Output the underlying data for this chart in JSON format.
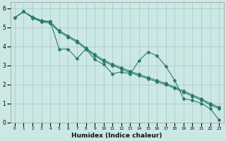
{
  "xlabel": "Humidex (Indice chaleur)",
  "background_color": "#cce8e4",
  "grid_color": "#aaccca",
  "line_color": "#2a7a6e",
  "xlim": [
    -0.5,
    23.5
  ],
  "ylim": [
    0,
    6.3
  ],
  "xticks": [
    0,
    1,
    2,
    3,
    4,
    5,
    6,
    7,
    8,
    9,
    10,
    11,
    12,
    13,
    14,
    15,
    16,
    17,
    18,
    19,
    20,
    21,
    22,
    23
  ],
  "yticks": [
    0,
    1,
    2,
    3,
    4,
    5,
    6
  ],
  "series1_x": [
    0,
    1,
    2,
    3,
    4,
    5,
    6,
    7,
    8,
    9,
    10,
    11,
    12,
    13,
    14,
    15,
    16,
    17,
    18,
    19,
    20,
    21,
    22,
    23
  ],
  "series1_y": [
    5.5,
    5.82,
    5.55,
    5.35,
    5.3,
    3.85,
    3.85,
    3.35,
    3.85,
    3.3,
    3.05,
    2.55,
    2.65,
    2.55,
    3.25,
    3.7,
    3.5,
    2.95,
    2.2,
    1.25,
    1.15,
    1.0,
    0.72,
    0.12
  ],
  "series2_x": [
    0,
    1,
    2,
    3,
    4,
    5,
    6,
    7,
    8,
    9,
    10,
    11,
    12,
    13,
    14,
    15,
    16,
    17,
    18,
    19,
    20,
    21,
    22,
    23
  ],
  "series2_y": [
    5.5,
    5.82,
    5.52,
    5.32,
    5.27,
    4.82,
    4.55,
    4.28,
    3.92,
    3.57,
    3.27,
    3.06,
    2.87,
    2.68,
    2.52,
    2.36,
    2.2,
    2.05,
    1.85,
    1.65,
    1.44,
    1.24,
    0.99,
    0.79
  ],
  "series3_x": [
    0,
    1,
    2,
    3,
    4,
    5,
    6,
    7,
    8,
    9,
    10,
    11,
    12,
    13,
    14,
    15,
    16,
    17,
    18,
    19,
    20,
    21,
    22,
    23
  ],
  "series3_y": [
    5.5,
    5.82,
    5.48,
    5.28,
    5.22,
    4.75,
    4.48,
    4.21,
    3.85,
    3.5,
    3.2,
    2.99,
    2.8,
    2.61,
    2.45,
    2.29,
    2.13,
    1.98,
    1.78,
    1.58,
    1.37,
    1.17,
    0.92,
    0.72
  ]
}
